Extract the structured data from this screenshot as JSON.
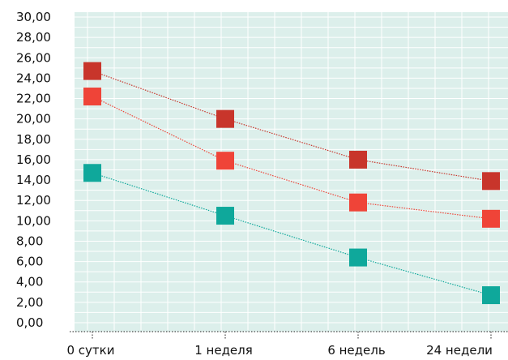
{
  "colors": {
    "plot_background": "#dcefeb",
    "grid": "#ffffff",
    "axis_dots": "#666666"
  },
  "chart_data": {
    "type": "line",
    "title": "",
    "xlabel": "",
    "ylabel": "",
    "categories": [
      "0 сутки",
      "1 неделя",
      "6 недель",
      "24 недели"
    ],
    "ylim": [
      0,
      30
    ],
    "y_ticks": [
      "0,00",
      "2,00",
      "4,00",
      "6,00",
      "8,00",
      "10,00",
      "12,00",
      "14,00",
      "16,00",
      "18,00",
      "20,00",
      "22,00",
      "24,00",
      "26,00",
      "28,00",
      "30,00"
    ],
    "grid": true,
    "legend": "none",
    "series": [
      {
        "color": "#c8352b",
        "marker": "square",
        "line_style": "dotted",
        "values": [
          24.7,
          20.0,
          16.0,
          13.9
        ]
      },
      {
        "color": "#ef4438",
        "marker": "square",
        "line_style": "dotted",
        "values": [
          22.2,
          15.9,
          11.8,
          10.2
        ]
      },
      {
        "color": "#0fa89b",
        "marker": "square",
        "line_style": "dotted",
        "values": [
          14.7,
          10.5,
          6.4,
          2.7
        ]
      }
    ]
  }
}
